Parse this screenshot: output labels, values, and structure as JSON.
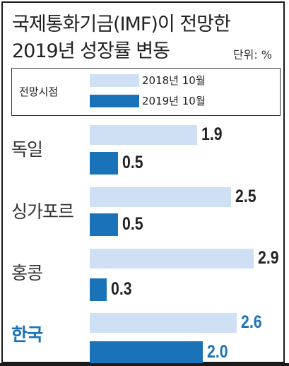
{
  "title_line1": "국제통화기금(IMF)이 전망한",
  "title_line2": "2019년 성장률 변동",
  "unit": "단위: %",
  "legend": {
    "title": "전망시점",
    "items": [
      {
        "label": "2018년 10월",
        "color": "#cfe0f4"
      },
      {
        "label": "2019년 10월",
        "color": "#1a73b8"
      }
    ]
  },
  "highlight_color": "#1a73b8",
  "chart_data": {
    "type": "bar",
    "orientation": "horizontal",
    "categories": [
      "독일",
      "싱가포르",
      "홍콩",
      "한국"
    ],
    "highlight_category": "한국",
    "series": [
      {
        "name": "2018년 10월",
        "values": [
          1.9,
          2.5,
          2.9,
          2.6
        ]
      },
      {
        "name": "2019년 10월",
        "values": [
          0.5,
          0.5,
          0.3,
          2.0
        ]
      }
    ],
    "value_labels": [
      [
        "1.9",
        "2.5",
        "2.9",
        "2.6"
      ],
      [
        "0.5",
        "0.5",
        "0.3",
        "2.0"
      ]
    ],
    "xlim": [
      0,
      2.9
    ],
    "unit": "%"
  }
}
